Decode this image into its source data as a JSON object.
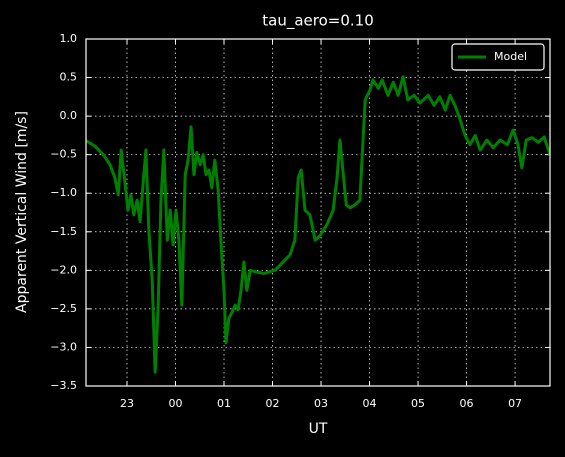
{
  "chart_data": {
    "type": "line",
    "title": "tau_aero=0.10",
    "xlabel": "UT",
    "ylabel": "Apparent Vertical Wind [m/s]",
    "x": [
      22.16,
      22.34,
      22.51,
      22.65,
      22.75,
      22.82,
      22.88,
      22.94,
      23.02,
      23.08,
      23.14,
      23.21,
      23.27,
      23.33,
      23.39,
      23.45,
      23.52,
      23.58,
      23.64,
      23.7,
      23.76,
      23.83,
      23.89,
      23.95,
      24.01,
      24.07,
      24.13,
      24.2,
      24.26,
      24.32,
      24.38,
      24.44,
      24.51,
      24.57,
      24.63,
      24.69,
      24.75,
      24.81,
      24.88,
      24.94,
      25.0,
      25.04,
      25.1,
      25.17,
      25.23,
      25.29,
      25.35,
      25.41,
      25.47,
      25.54,
      25.66,
      25.82,
      26.05,
      26.22,
      26.36,
      26.46,
      26.53,
      26.59,
      26.67,
      26.77,
      26.88,
      26.98,
      27.12,
      27.25,
      27.33,
      27.39,
      27.45,
      27.52,
      27.6,
      27.7,
      27.8,
      27.91,
      28.01,
      28.07,
      28.18,
      28.26,
      28.38,
      28.49,
      28.59,
      28.69,
      28.79,
      28.92,
      29.04,
      29.21,
      29.33,
      29.45,
      29.56,
      29.66,
      29.76,
      29.87,
      29.97,
      30.07,
      30.18,
      30.28,
      30.42,
      30.55,
      30.69,
      30.84,
      30.96,
      31.06,
      31.14,
      31.23,
      31.35,
      31.48,
      31.6,
      31.72
    ],
    "series": [
      {
        "name": "Model",
        "color": "#008000",
        "values": [
          -0.32,
          -0.39,
          -0.5,
          -0.63,
          -0.8,
          -1.02,
          -0.44,
          -0.76,
          -1.22,
          -1.02,
          -1.28,
          -1.09,
          -1.37,
          -0.89,
          -0.44,
          -1.48,
          -2.13,
          -3.32,
          -2.51,
          -1.09,
          -0.44,
          -1.61,
          -1.22,
          -1.67,
          -1.22,
          -1.61,
          -2.45,
          -0.76,
          -0.57,
          -0.14,
          -0.76,
          -0.47,
          -0.63,
          -0.5,
          -0.76,
          -0.7,
          -0.93,
          -0.57,
          -0.96,
          -1.67,
          -2.26,
          -2.94,
          -2.62,
          -2.54,
          -2.45,
          -2.51,
          -2.26,
          -1.89,
          -2.26,
          -2.0,
          -2.02,
          -2.04,
          -2.0,
          -1.89,
          -1.8,
          -1.61,
          -0.8,
          -0.7,
          -1.22,
          -1.28,
          -1.61,
          -1.55,
          -1.41,
          -1.22,
          -0.8,
          -0.31,
          -0.7,
          -1.15,
          -1.19,
          -1.15,
          -1.09,
          0.21,
          0.34,
          0.47,
          0.36,
          0.47,
          0.27,
          0.44,
          0.27,
          0.51,
          0.21,
          0.27,
          0.17,
          0.27,
          0.14,
          0.25,
          0.08,
          0.27,
          0.14,
          -0.05,
          -0.25,
          -0.37,
          -0.25,
          -0.44,
          -0.31,
          -0.41,
          -0.31,
          -0.37,
          -0.18,
          -0.37,
          -0.67,
          -0.31,
          -0.28,
          -0.34,
          -0.27,
          -0.5
        ]
      }
    ],
    "xlim": [
      22.155,
      31.72
    ],
    "xticks": [
      {
        "value": 23,
        "label": "23"
      },
      {
        "value": 24,
        "label": "00"
      },
      {
        "value": 25,
        "label": "01"
      },
      {
        "value": 26,
        "label": "02"
      },
      {
        "value": 27,
        "label": "03"
      },
      {
        "value": 28,
        "label": "04"
      },
      {
        "value": 29,
        "label": "05"
      },
      {
        "value": 30,
        "label": "06"
      },
      {
        "value": 31,
        "label": "07"
      }
    ],
    "ylim": [
      -3.5,
      1.0
    ],
    "yticks": [
      {
        "value": -3.5,
        "label": "−3.5"
      },
      {
        "value": -3.0,
        "label": "−3.0"
      },
      {
        "value": -2.5,
        "label": "−2.5"
      },
      {
        "value": -2.0,
        "label": "−2.0"
      },
      {
        "value": -1.5,
        "label": "−1.5"
      },
      {
        "value": -1.0,
        "label": "−1.0"
      },
      {
        "value": -0.5,
        "label": "−0.5"
      },
      {
        "value": 0.0,
        "label": "0.0"
      },
      {
        "value": 0.5,
        "label": "0.5"
      },
      {
        "value": 1.0,
        "label": "1.0"
      }
    ],
    "grid": true,
    "legend": "upper right"
  }
}
